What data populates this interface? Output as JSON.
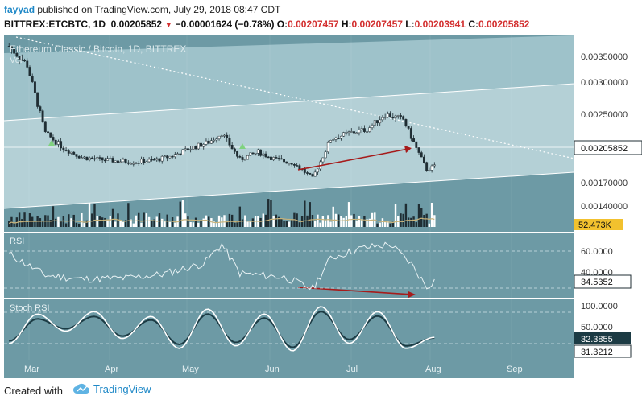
{
  "header": {
    "user": "fayyad",
    "published": "published on TradingView.com, July 29, 2018 08:47 CDT",
    "symbol": "BITTREX:ETCBTC, 1D",
    "last": "0.00205852",
    "change": "−0.00001624 (−0.78%)",
    "o_label": "O:",
    "o_value": "0.00207457",
    "h_label": "H:",
    "h_value": "0.00207457",
    "l_label": "L:",
    "l_value": "0.00203941",
    "c_label": "C:",
    "c_value": "0.00205852"
  },
  "footer": {
    "created_with": "Created with",
    "brand": "TradingView"
  },
  "colors": {
    "plot_bg": "#6d9aa5",
    "band": "#b4d0d6",
    "band_top": "#9ec2ca",
    "candle": "#1f2d33",
    "ma": "#c9b37a",
    "arrow": "#a61b1b",
    "price_tag": "#ffffff",
    "volume_tag": "#f2c12e",
    "stoch_tag": "#1c3b44"
  },
  "chart_data": {
    "main": {
      "type": "candlestick",
      "title": "Ethereum Classic / Bitcoin, 1D, BITTREX",
      "volume_label": "Vol",
      "x_ticks": [
        "Mar",
        "Apr",
        "May",
        "Jun",
        "Jul",
        "Aug",
        "Sep"
      ],
      "y_ticks": [
        "0.00350000",
        "0.00300000",
        "0.00250000",
        "0.00170000",
        "0.00140000"
      ],
      "ylim": [
        0.00128,
        0.00375
      ],
      "last_price_label": "0.00205852",
      "volume_label_value": "52.473K",
      "close_series": [
        {
          "date": "2018-02-15",
          "close": 0.00365
        },
        {
          "date": "2018-02-22",
          "close": 0.0034
        },
        {
          "date": "2018-03-01",
          "close": 0.0025
        },
        {
          "date": "2018-03-08",
          "close": 0.0023
        },
        {
          "date": "2018-03-15",
          "close": 0.00218
        },
        {
          "date": "2018-03-22",
          "close": 0.00215
        },
        {
          "date": "2018-03-29",
          "close": 0.00213
        },
        {
          "date": "2018-04-05",
          "close": 0.00212
        },
        {
          "date": "2018-04-12",
          "close": 0.00214
        },
        {
          "date": "2018-04-19",
          "close": 0.0022
        },
        {
          "date": "2018-04-26",
          "close": 0.0023
        },
        {
          "date": "2018-05-03",
          "close": 0.00238
        },
        {
          "date": "2018-05-08",
          "close": 0.0025
        },
        {
          "date": "2018-05-15",
          "close": 0.00215
        },
        {
          "date": "2018-05-22",
          "close": 0.00225
        },
        {
          "date": "2018-05-29",
          "close": 0.00215
        },
        {
          "date": "2018-06-05",
          "close": 0.0021
        },
        {
          "date": "2018-06-12",
          "close": 0.0019
        },
        {
          "date": "2018-06-19",
          "close": 0.00242
        },
        {
          "date": "2018-06-26",
          "close": 0.0025
        },
        {
          "date": "2018-07-03",
          "close": 0.00255
        },
        {
          "date": "2018-07-10",
          "close": 0.00275
        },
        {
          "date": "2018-07-17",
          "close": 0.00268
        },
        {
          "date": "2018-07-22",
          "close": 0.0023
        },
        {
          "date": "2018-07-26",
          "close": 0.00202
        },
        {
          "date": "2018-07-29",
          "close": 0.00205852
        }
      ]
    },
    "rsi": {
      "type": "line",
      "label": "RSI",
      "y_ticks": [
        "60.0000",
        "40.0000"
      ],
      "ylim": [
        20,
        80
      ],
      "current_label": "34.5352",
      "series": [
        {
          "date": "2018-02-15",
          "value": 62
        },
        {
          "date": "2018-03-01",
          "value": 40
        },
        {
          "date": "2018-03-15",
          "value": 36
        },
        {
          "date": "2018-04-01",
          "value": 37
        },
        {
          "date": "2018-04-15",
          "value": 41
        },
        {
          "date": "2018-05-01",
          "value": 52
        },
        {
          "date": "2018-05-08",
          "value": 72
        },
        {
          "date": "2018-05-15",
          "value": 42
        },
        {
          "date": "2018-06-01",
          "value": 38
        },
        {
          "date": "2018-06-12",
          "value": 26
        },
        {
          "date": "2018-06-19",
          "value": 58
        },
        {
          "date": "2018-07-01",
          "value": 68
        },
        {
          "date": "2018-07-12",
          "value": 72
        },
        {
          "date": "2018-07-20",
          "value": 52
        },
        {
          "date": "2018-07-26",
          "value": 28
        },
        {
          "date": "2018-07-29",
          "value": 34.5352
        }
      ]
    },
    "stoch_rsi": {
      "type": "line",
      "label": "Stoch RSI",
      "y_ticks": [
        "100.0000",
        "50.0000"
      ],
      "ylim": [
        -5,
        105
      ],
      "k_label": "32.3855",
      "d_label": "31.3212",
      "series": [
        {
          "name": "K",
          "values": [
            20,
            80,
            45,
            85,
            30,
            75,
            10,
            90,
            15,
            80,
            5,
            95,
            20,
            85,
            10,
            32.3855
          ]
        },
        {
          "name": "D",
          "values": [
            25,
            70,
            50,
            75,
            35,
            68,
            18,
            80,
            22,
            72,
            12,
            85,
            28,
            76,
            15,
            31.3212
          ]
        }
      ]
    }
  }
}
